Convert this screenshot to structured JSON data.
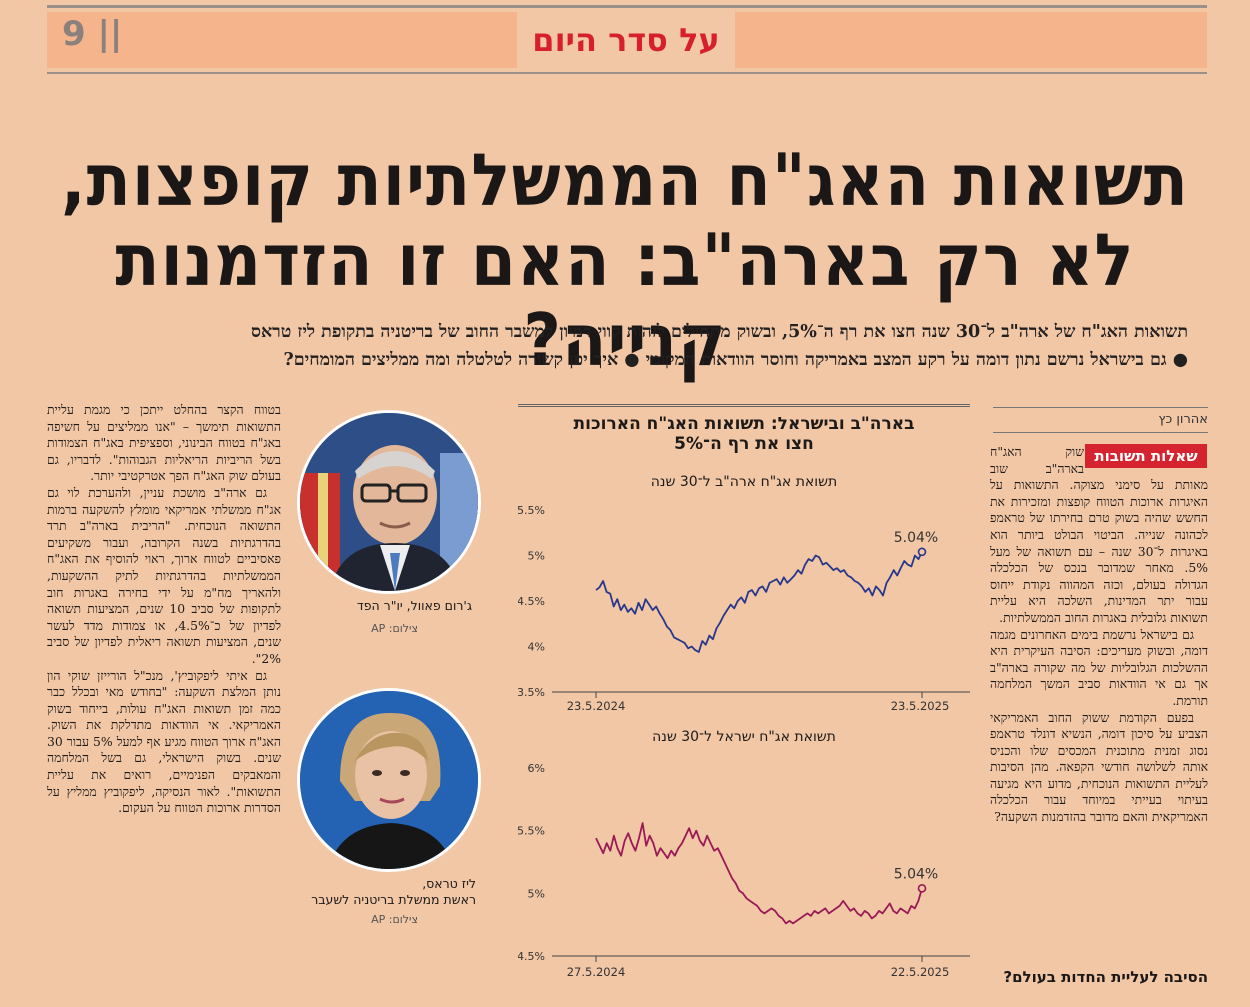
{
  "header": {
    "page_number": "9 ||",
    "section": "על סדר היום"
  },
  "article": {
    "headline_line1": "תשואות האג\"ח הממשלתיות קופצות,",
    "headline_line2": "לא רק בארה\"ב: האם זו הזדמנות קנייה?",
    "subhead_line1": "תשואות האג\"ח של ארה\"ב ל־30 שנה חצו את רף ה־5%, ובשוק מתחילים לזהות קווי דמיון למשבר החוב של בריטניה בתקופת ליז טראס",
    "subhead_line2": "● גם בישראל נרשם נתון דומה על רקע המצב באמריקה וחוסר הוודאות המקומי ● איך יפן קשורה לטלטלה ומה ממליצים המומחים?",
    "byline": "אהרון כץ",
    "badge": "שאלות תשובות",
    "right_col": [
      "שוק האג\"ח בארה\"ב שוב מאותת על סימני מצוקה. התשואות על האיגרות ארוכות הטווח קופצות ומזכירות את החשש שהיה בשוק טרם בחירתו של טראמפ לכהונה שנייה. הביטוי הבולט ביותר הוא באיגרות ל־30 שנה – עם תשואה של מעל 5%. מאחר שמדובר בנכס של הכלכלה הגדולה בעולם, וכזה המהווה נקודת ייחוס עבור יתר המדינות, השלכה היא עליית תשואות גלובלית באגרות החוב הממשלתיות.",
      "גם בישראל נרשמת בימים האחרונים מגמה דומה, ובשוק מעריכים: הסיבה העיקרית היא ההשלכות הגלובליות של מה שקורה בארה\"ב אך גם אי הוודאות סביב המשך המלחמה תורמת.",
      "בפעם הקודמת ששוק החוב האמריקאי הצביע על סיכון דומה, הנשיא דונלד טראמפ נסוג זמנית מתוכנית המכסים שלו והכניס אותה לשלושה חודשי הקפאה. מהן הסיבות לעליית התשואות הנוכחית, מדוע היא מגיעה בעיתוי בעייתי במיוחד עבור הכלכלה האמריקאית והאם מדובר בהזדמנות השקעה?"
    ],
    "crosshead": "הסיבה לעליית החדות בעולם?",
    "left_col": [
      "בטווח הקצר בהחלט ייתכן כי מגמת עליית התשואות תימשך – \"אנו ממליצים על חשיפה באג\"ח בטווח הבינוני, וספציפית באג\"ח הצמודות בשל הריביות הריאליות הגבוהות\". לדבריו, גם בעולם שוק האג\"ח הפך אטרקטיבי יותר.",
      "גם ארה\"ב מושכת עניין, ולהערכת לוי גם אג\"ח ממשלתי אמריקאי מומלץ להשקעה ברמות התשואה הנוכחית. \"הריבית בארה\"ב תרד בהדרגתיות בשנה הקרובה, ועבור משקיעים פאסיביים לטווח ארוך, ראוי להוסיף את האג\"ח הממשלתיות בהדרגתיות לתיק ההשקעות, ולהאריך מח\"מ על ידי בחירה באגרות חוב לתקופות של סביב 10 שנים, המציעות תשואה לפדיון של כ־4.5%, או צמודות מדד לעשר שנים, המציעות תשואה ריאלית לפדיון של סביב 2%\".",
      "גם איתי ליפקוביץ', מנכ\"ל הורייזן שוקי הון נותן המלצת השקעה: \"בחודש מאי ובכלל כבר כמה זמן תשואות האג\"ח עולות, בייחוד בשוק האמריקאי. אי הוודאות מתדלקת את השוק. האג\"ח ארוך הטווח מגיע אף למעל 5% עבור 30 שנים. בשוק הישראלי, גם בשל המלחמה והמאבקים הפנימיים, רואים את עליית התשואות\". לאור הנסיקה, ליפקוביץ ממליץ על הסדרות ארוכות הטווח על העקום."
    ]
  },
  "photos": [
    {
      "caption": "ג'רום פאוול, יו\"ר הפד",
      "credit": "צילום: AP"
    },
    {
      "caption_line1": "ליז טראס,",
      "caption_line2": "ראשת ממשלת בריטניה לשעבר",
      "credit": "צילום: AP"
    }
  ],
  "chart_title_line1": "בארה\"ב ובישראל: תשואות האג\"ח הארוכות",
  "chart_title_line2": "חצו את רף ה־5%",
  "chart_data": [
    {
      "type": "line",
      "title": "תשואת אג\"ח ארה\"ב ל־30 שנה",
      "x_start_label": "23.5.2024",
      "x_end_label": "23.5.2025",
      "ylim": [
        3.5,
        5.5
      ],
      "yticks": [
        "3.5%",
        "4%",
        "4.5%",
        "5%",
        "5.5%"
      ],
      "ytick_values": [
        3.5,
        4.0,
        4.5,
        5.0,
        5.5
      ],
      "end_label": "5.04%",
      "color": "#27378a",
      "values": [
        4.62,
        4.65,
        4.72,
        4.6,
        4.58,
        4.44,
        4.52,
        4.4,
        4.46,
        4.38,
        4.42,
        4.36,
        4.48,
        4.4,
        4.52,
        4.46,
        4.4,
        4.44,
        4.36,
        4.3,
        4.22,
        4.18,
        4.1,
        4.08,
        4.06,
        4.04,
        3.98,
        4.0,
        3.96,
        3.94,
        4.06,
        4.02,
        4.12,
        4.08,
        4.2,
        4.26,
        4.34,
        4.4,
        4.46,
        4.42,
        4.5,
        4.54,
        4.48,
        4.6,
        4.62,
        4.56,
        4.64,
        4.66,
        4.6,
        4.7,
        4.72,
        4.74,
        4.68,
        4.76,
        4.7,
        4.74,
        4.78,
        4.84,
        4.8,
        4.9,
        4.96,
        4.94,
        5.0,
        4.98,
        4.9,
        4.92,
        4.88,
        4.84,
        4.86,
        4.82,
        4.84,
        4.78,
        4.76,
        4.72,
        4.7,
        4.66,
        4.6,
        4.64,
        4.56,
        4.66,
        4.62,
        4.56,
        4.7,
        4.76,
        4.84,
        4.78,
        4.86,
        4.94,
        4.9,
        4.88,
        5.0,
        4.96,
        5.04
      ]
    },
    {
      "type": "line",
      "title": "תשואת אג\"ח ישראל ל־30 שנה",
      "x_start_label": "27.5.2024",
      "x_end_label": "22.5.2025",
      "ylim": [
        4.5,
        6.0
      ],
      "yticks": [
        "4.5%",
        "5%",
        "5.5%",
        "6%"
      ],
      "ytick_values": [
        4.5,
        5.0,
        5.5,
        6.0
      ],
      "end_label": "5.04%",
      "color": "#9a1a55",
      "values": [
        5.44,
        5.38,
        5.32,
        5.4,
        5.34,
        5.46,
        5.36,
        5.3,
        5.42,
        5.48,
        5.4,
        5.34,
        5.44,
        5.56,
        5.38,
        5.46,
        5.4,
        5.3,
        5.36,
        5.32,
        5.28,
        5.34,
        5.3,
        5.36,
        5.4,
        5.46,
        5.52,
        5.44,
        5.5,
        5.42,
        5.38,
        5.46,
        5.4,
        5.34,
        5.36,
        5.3,
        5.24,
        5.18,
        5.12,
        5.08,
        5.02,
        5.0,
        4.96,
        4.94,
        4.92,
        4.9,
        4.86,
        4.84,
        4.86,
        4.88,
        4.86,
        4.82,
        4.8,
        4.76,
        4.78,
        4.76,
        4.78,
        4.8,
        4.82,
        4.84,
        4.82,
        4.86,
        4.84,
        4.86,
        4.88,
        4.84,
        4.86,
        4.88,
        4.9,
        4.94,
        4.9,
        4.86,
        4.88,
        4.84,
        4.82,
        4.86,
        4.84,
        4.8,
        4.82,
        4.86,
        4.84,
        4.88,
        4.92,
        4.86,
        4.84,
        4.88,
        4.86,
        4.84,
        4.9,
        4.88,
        4.94,
        5.04
      ]
    }
  ]
}
